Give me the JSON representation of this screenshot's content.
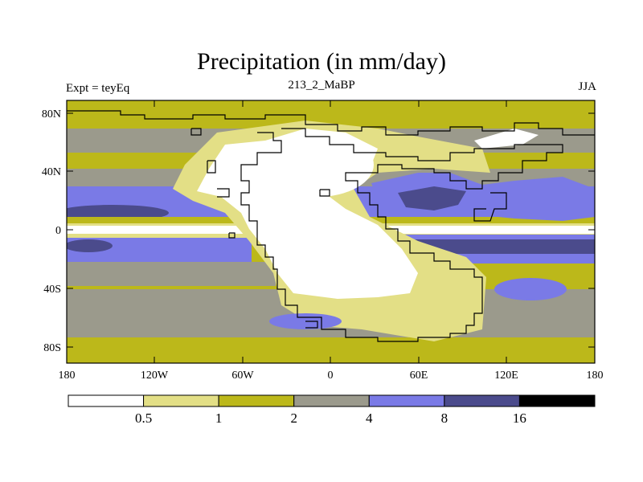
{
  "title": "Precipitation (in mm/day)",
  "subtitle_left": "Expt = teyEq",
  "subtitle_center": "213_2_MaBP",
  "subtitle_right": "JJA",
  "x_axis": {
    "ticks": [
      "180",
      "120W",
      "60W",
      "0",
      "60E",
      "120E",
      "180"
    ]
  },
  "y_axis": {
    "ticks": [
      "80N",
      "40N",
      "0",
      "40S",
      "80S"
    ]
  },
  "colorbar": {
    "levels": [
      "0.5",
      "1",
      "2",
      "4",
      "8",
      "16"
    ],
    "colors": [
      "#ffffff",
      "#e3df86",
      "#bcb81a",
      "#9b9a8c",
      "#7a7ae6",
      "#4b4b8c",
      "#000000"
    ]
  },
  "map_colors": {
    "white": "#ffffff",
    "light_yellow": "#e3df86",
    "olive": "#bcb81a",
    "gray": "#9b9a8c",
    "light_blue": "#7a7ae6",
    "dark_blue": "#4b4b8c",
    "coastline": "#000000"
  }
}
